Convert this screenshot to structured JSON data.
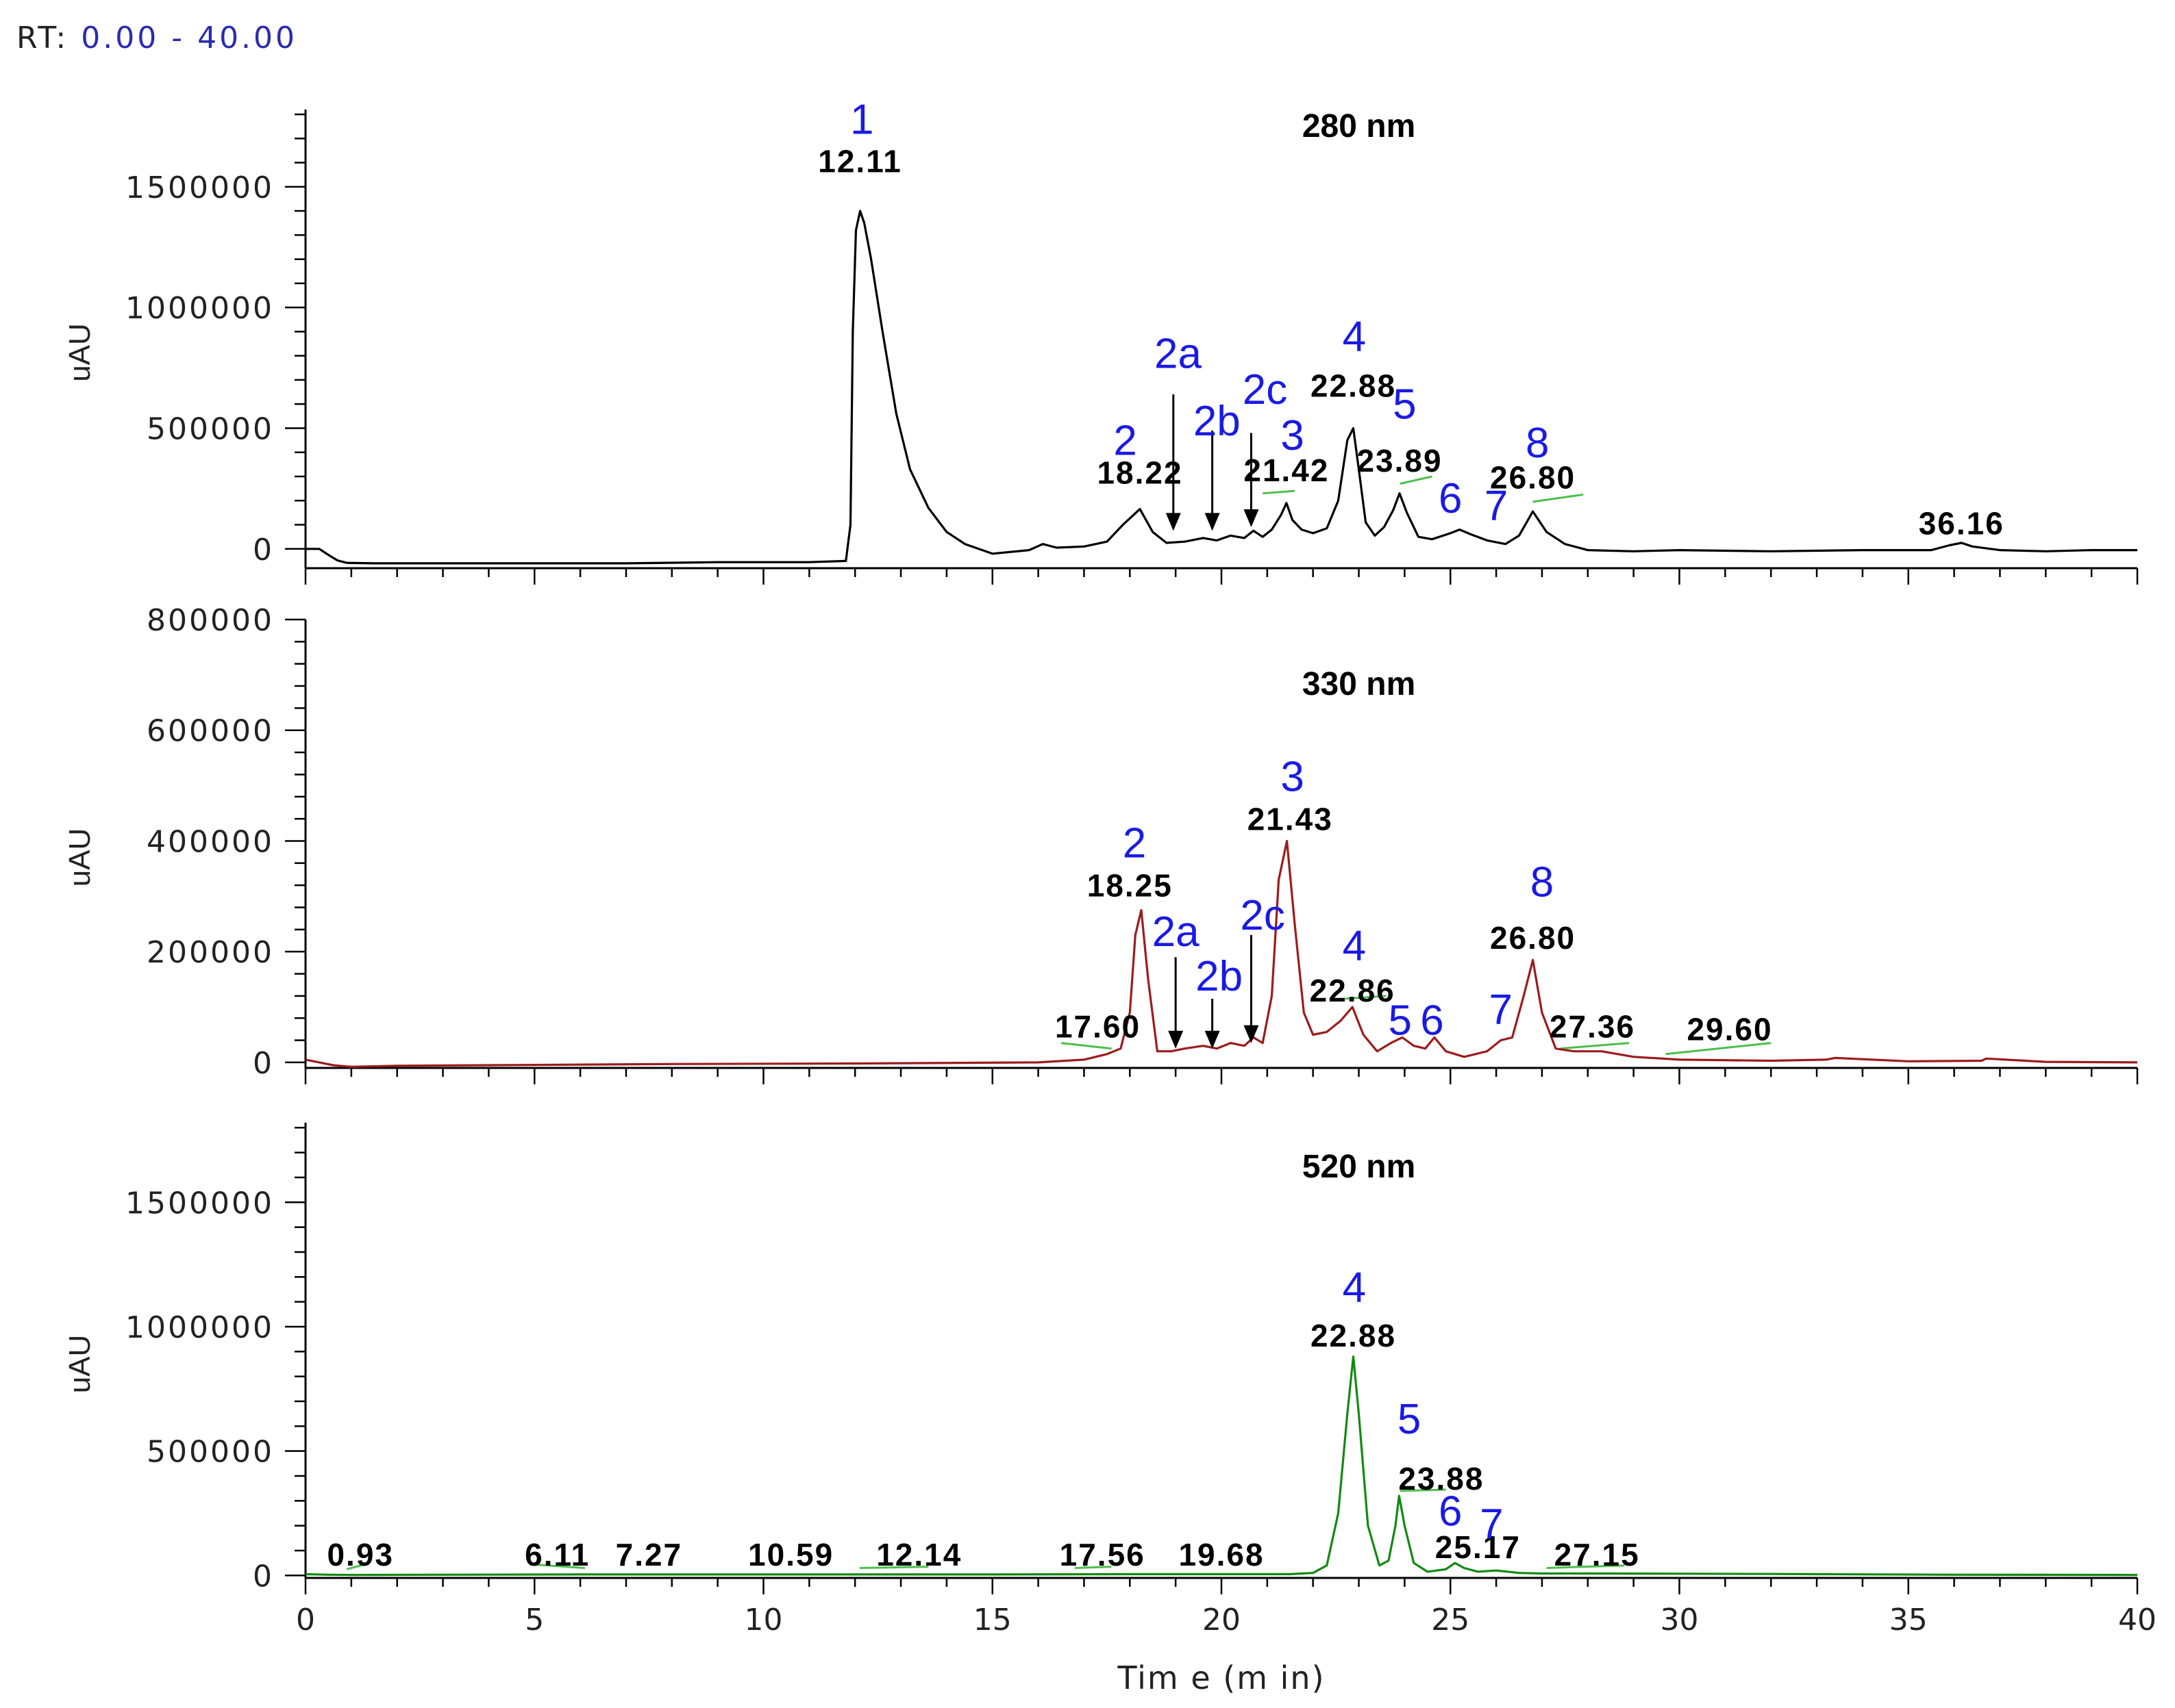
{
  "header": {
    "rt_prefix": "RT:",
    "rt_range": "0.00 - 40.00"
  },
  "colors": {
    "axis": "#000000",
    "peak_number": "#1a1ae6",
    "rt_label": "#000000",
    "baseline_mark": "#4cbf4c"
  },
  "chart_data": [
    {
      "type": "line",
      "title": "280 nm",
      "ylabel": "uAU",
      "xlabel": "Tim e (m in)",
      "xlim": [
        0,
        40
      ],
      "ylim": [
        -80000,
        1820000
      ],
      "yticks": [
        0,
        500000,
        1000000,
        1500000
      ],
      "ytick_labels": [
        "0",
        "500000",
        "1000000",
        "1500000"
      ],
      "show_x_tick_labels": false,
      "color": "#000000",
      "series": [
        {
          "x": [
            0,
            0.3,
            0.5,
            0.7,
            0.9,
            1.5,
            4,
            7,
            9,
            11,
            11.8,
            11.9,
            11.95,
            12.02,
            12.11,
            12.2,
            12.35,
            12.6,
            12.9,
            13.2,
            13.6,
            14.0,
            14.4,
            15,
            15.8,
            16.1,
            16.4,
            17.0,
            17.5,
            17.85,
            18.22,
            18.5,
            18.8,
            19.2,
            19.6,
            19.9,
            20.2,
            20.5,
            20.7,
            20.9,
            21.1,
            21.3,
            21.42,
            21.55,
            21.75,
            22.0,
            22.3,
            22.55,
            22.75,
            22.88,
            23.0,
            23.15,
            23.35,
            23.55,
            23.75,
            23.89,
            24.05,
            24.3,
            24.6,
            25.0,
            25.2,
            25.45,
            25.8,
            26.2,
            26.5,
            26.8,
            27.1,
            27.5,
            28,
            29,
            30,
            32,
            34,
            35.5,
            35.9,
            36.16,
            36.4,
            37,
            38,
            39,
            40
          ],
          "y": [
            0,
            0,
            -25000,
            -48000,
            -58000,
            -60000,
            -60000,
            -60000,
            -55000,
            -55000,
            -50000,
            100000,
            900000,
            1320000,
            1400000,
            1350000,
            1200000,
            900000,
            560000,
            330000,
            170000,
            70000,
            20000,
            -20000,
            -5000,
            20000,
            5000,
            10000,
            30000,
            100000,
            165000,
            70000,
            25000,
            30000,
            45000,
            35000,
            55000,
            45000,
            75000,
            50000,
            80000,
            140000,
            190000,
            120000,
            80000,
            65000,
            85000,
            200000,
            450000,
            500000,
            330000,
            110000,
            55000,
            90000,
            160000,
            230000,
            150000,
            50000,
            40000,
            65000,
            80000,
            60000,
            35000,
            20000,
            55000,
            155000,
            70000,
            20000,
            -5000,
            -10000,
            -5000,
            -10000,
            -5000,
            -5000,
            15000,
            25000,
            10000,
            -5000,
            -10000,
            -5000,
            -5000
          ]
        }
      ],
      "rt_labels": [
        {
          "text": "12.11",
          "x": 12.11,
          "y": 1560000
        },
        {
          "text": "18.22",
          "x": 18.22,
          "y": 270000
        },
        {
          "text": "21.42",
          "x": 21.42,
          "y": 280000
        },
        {
          "text": "22.88",
          "x": 22.88,
          "y": 630000
        },
        {
          "text": "23.89",
          "x": 23.89,
          "y": 320000
        },
        {
          "text": "26.80",
          "x": 26.8,
          "y": 250000
        },
        {
          "text": "36.16",
          "x": 36.16,
          "y": 60000
        }
      ],
      "peak_numbers": [
        {
          "text": "1",
          "x": 12.15,
          "y": 1720000
        },
        {
          "text": "2",
          "x": 17.9,
          "y": 390000
        },
        {
          "text": "2a",
          "x": 19.05,
          "y": 750000
        },
        {
          "text": "2b",
          "x": 19.9,
          "y": 470000
        },
        {
          "text": "2c",
          "x": 20.95,
          "y": 600000
        },
        {
          "text": "3",
          "x": 21.55,
          "y": 410000
        },
        {
          "text": "4",
          "x": 22.9,
          "y": 820000
        },
        {
          "text": "5",
          "x": 24.0,
          "y": 540000
        },
        {
          "text": "6",
          "x": 25.0,
          "y": 150000
        },
        {
          "text": "7",
          "x": 26.0,
          "y": 120000
        },
        {
          "text": "8",
          "x": 26.9,
          "y": 380000
        }
      ],
      "arrows": [
        {
          "x": 18.95,
          "y_top": 640000,
          "y_bottom": 75000
        },
        {
          "x": 19.8,
          "y_top": 490000,
          "y_bottom": 75000
        },
        {
          "x": 20.65,
          "y_top": 480000,
          "y_bottom": 90000
        }
      ],
      "baseline_marks": [
        {
          "x0": 20.9,
          "x1": 21.6,
          "y0": 230000,
          "y1": 240000
        },
        {
          "x0": 23.9,
          "x1": 24.6,
          "y0": 270000,
          "y1": 300000
        },
        {
          "x0": 26.8,
          "x1": 27.9,
          "y0": 195000,
          "y1": 225000
        }
      ]
    },
    {
      "type": "line",
      "title": "330 nm",
      "ylabel": "uAU",
      "xlabel": "Tim e (m in)",
      "xlim": [
        0,
        40
      ],
      "ylim": [
        -10000,
        800000
      ],
      "yticks": [
        0,
        200000,
        400000,
        600000,
        800000
      ],
      "ytick_labels": [
        "0",
        "200000",
        "400000",
        "600000",
        "800000"
      ],
      "show_x_tick_labels": false,
      "color": "#9c1c1c",
      "series": [
        {
          "x": [
            0,
            0.3,
            0.6,
            1.0,
            2,
            4,
            8,
            12,
            16,
            17.0,
            17.5,
            17.8,
            18.0,
            18.12,
            18.25,
            18.4,
            18.6,
            18.9,
            19.2,
            19.6,
            19.9,
            20.2,
            20.5,
            20.7,
            20.9,
            21.1,
            21.25,
            21.43,
            21.6,
            21.8,
            22.0,
            22.3,
            22.6,
            22.86,
            23.1,
            23.4,
            23.7,
            23.95,
            24.2,
            24.45,
            24.65,
            24.9,
            25.3,
            25.8,
            26.1,
            26.35,
            26.6,
            26.8,
            27.0,
            27.3,
            27.7,
            28.3,
            29,
            30,
            32,
            33.2,
            33.4,
            35,
            36.6,
            36.7,
            38,
            40
          ],
          "y": [
            5000,
            0,
            -5000,
            -8000,
            -6000,
            -5000,
            -3000,
            -2000,
            0,
            5000,
            15000,
            25000,
            90000,
            230000,
            275000,
            150000,
            20000,
            20000,
            25000,
            30000,
            25000,
            35000,
            30000,
            45000,
            35000,
            120000,
            330000,
            400000,
            250000,
            90000,
            50000,
            55000,
            75000,
            100000,
            50000,
            20000,
            35000,
            45000,
            30000,
            25000,
            45000,
            20000,
            10000,
            20000,
            40000,
            45000,
            120000,
            185000,
            90000,
            25000,
            20000,
            20000,
            10000,
            5000,
            3000,
            5000,
            8000,
            2000,
            3000,
            7000,
            1000,
            0
          ]
        }
      ],
      "rt_labels": [
        {
          "text": "17.60",
          "x": 17.3,
          "y": 45000
        },
        {
          "text": "18.25",
          "x": 18.0,
          "y": 300000
        },
        {
          "text": "21.43",
          "x": 21.5,
          "y": 420000
        },
        {
          "text": "22.86",
          "x": 22.86,
          "y": 110000
        },
        {
          "text": "26.80",
          "x": 26.8,
          "y": 205000
        },
        {
          "text": "27.36",
          "x": 28.1,
          "y": 45000
        },
        {
          "text": "29.60",
          "x": 31.1,
          "y": 40000
        }
      ],
      "peak_numbers": [
        {
          "text": "2",
          "x": 18.1,
          "y": 370000
        },
        {
          "text": "2a",
          "x": 19.0,
          "y": 210000
        },
        {
          "text": "2b",
          "x": 19.95,
          "y": 130000
        },
        {
          "text": "2c",
          "x": 20.9,
          "y": 240000
        },
        {
          "text": "3",
          "x": 21.55,
          "y": 490000
        },
        {
          "text": "4",
          "x": 22.9,
          "y": 185000
        },
        {
          "text": "5",
          "x": 23.9,
          "y": 50000
        },
        {
          "text": "6",
          "x": 24.6,
          "y": 50000
        },
        {
          "text": "7",
          "x": 26.1,
          "y": 70000
        },
        {
          "text": "8",
          "x": 27.0,
          "y": 300000
        }
      ],
      "arrows": [
        {
          "x": 19.0,
          "y_top": 190000,
          "y_bottom": 25000
        },
        {
          "x": 19.8,
          "y_top": 115000,
          "y_bottom": 25000
        },
        {
          "x": 20.65,
          "y_top": 230000,
          "y_bottom": 35000
        }
      ],
      "baseline_marks": [
        {
          "x0": 16.5,
          "x1": 17.6,
          "y0": 35000,
          "y1": 25000
        },
        {
          "x0": 22.7,
          "x1": 23.6,
          "y0": 115000,
          "y1": 120000
        },
        {
          "x0": 27.4,
          "x1": 28.9,
          "y0": 25000,
          "y1": 35000
        },
        {
          "x0": 29.7,
          "x1": 32.0,
          "y0": 15000,
          "y1": 35000
        }
      ]
    },
    {
      "type": "line",
      "title": "520 nm",
      "ylabel": "uAU",
      "xlabel": "Tim e (m in)",
      "xlim": [
        0,
        40
      ],
      "ylim": [
        -10000,
        1820000
      ],
      "yticks": [
        0,
        500000,
        1000000,
        1500000
      ],
      "ytick_labels": [
        "0",
        "500000",
        "1000000",
        "1500000"
      ],
      "xticks": [
        0,
        5,
        10,
        15,
        20,
        25,
        30,
        35,
        40
      ],
      "xtick_labels": [
        "0",
        "5",
        "10",
        "15",
        "20",
        "25",
        "30",
        "35",
        "40"
      ],
      "show_x_tick_labels": true,
      "color": "#128a12",
      "series": [
        {
          "x": [
            0,
            0.5,
            1,
            3,
            6,
            9,
            12,
            15,
            18,
            20,
            21.5,
            22.0,
            22.3,
            22.55,
            22.75,
            22.88,
            23.0,
            23.2,
            23.45,
            23.65,
            23.8,
            23.88,
            24.0,
            24.2,
            24.5,
            24.9,
            25.1,
            25.3,
            25.6,
            26.0,
            26.5,
            27.0,
            28,
            30,
            32,
            33,
            36,
            40
          ],
          "y": [
            5000,
            3000,
            2000,
            3000,
            4000,
            4000,
            4000,
            4000,
            5000,
            5000,
            5000,
            10000,
            40000,
            250000,
            650000,
            880000,
            650000,
            200000,
            40000,
            60000,
            200000,
            320000,
            200000,
            50000,
            15000,
            25000,
            50000,
            30000,
            15000,
            20000,
            10000,
            8000,
            8000,
            7000,
            6000,
            5000,
            3000,
            2000
          ]
        }
      ],
      "rt_labels": [
        {
          "text": "0.93",
          "x": 1.2,
          "y": 40000
        },
        {
          "text": "6.11",
          "x": 5.5,
          "y": 40000
        },
        {
          "text": "7.27",
          "x": 7.5,
          "y": 40000
        },
        {
          "text": "10.59",
          "x": 10.6,
          "y": 40000
        },
        {
          "text": "12.14",
          "x": 13.4,
          "y": 40000
        },
        {
          "text": "17.56",
          "x": 17.4,
          "y": 40000
        },
        {
          "text": "19.68",
          "x": 20.0,
          "y": 40000
        },
        {
          "text": "22.88",
          "x": 22.88,
          "y": 920000
        },
        {
          "text": "23.88",
          "x": 24.8,
          "y": 345000
        },
        {
          "text": "25.17",
          "x": 25.6,
          "y": 70000
        },
        {
          "text": "27.15",
          "x": 28.2,
          "y": 40000
        }
      ],
      "peak_numbers": [
        {
          "text": "4",
          "x": 22.9,
          "y": 1100000
        },
        {
          "text": "5",
          "x": 24.1,
          "y": 570000
        },
        {
          "text": "6",
          "x": 25.0,
          "y": 200000
        },
        {
          "text": "7",
          "x": 25.9,
          "y": 150000
        }
      ],
      "arrows": [],
      "baseline_marks": [
        {
          "x0": 0.9,
          "x1": 1.3,
          "y0": 25000,
          "y1": 45000
        },
        {
          "x0": 4.9,
          "x1": 6.1,
          "y0": 45000,
          "y1": 30000
        },
        {
          "x0": 12.1,
          "x1": 13.6,
          "y0": 30000,
          "y1": 35000
        },
        {
          "x0": 16.8,
          "x1": 17.6,
          "y0": 30000,
          "y1": 35000
        },
        {
          "x0": 23.9,
          "x1": 24.9,
          "y0": 340000,
          "y1": 345000
        },
        {
          "x0": 27.1,
          "x1": 28.8,
          "y0": 30000,
          "y1": 40000
        }
      ]
    }
  ]
}
